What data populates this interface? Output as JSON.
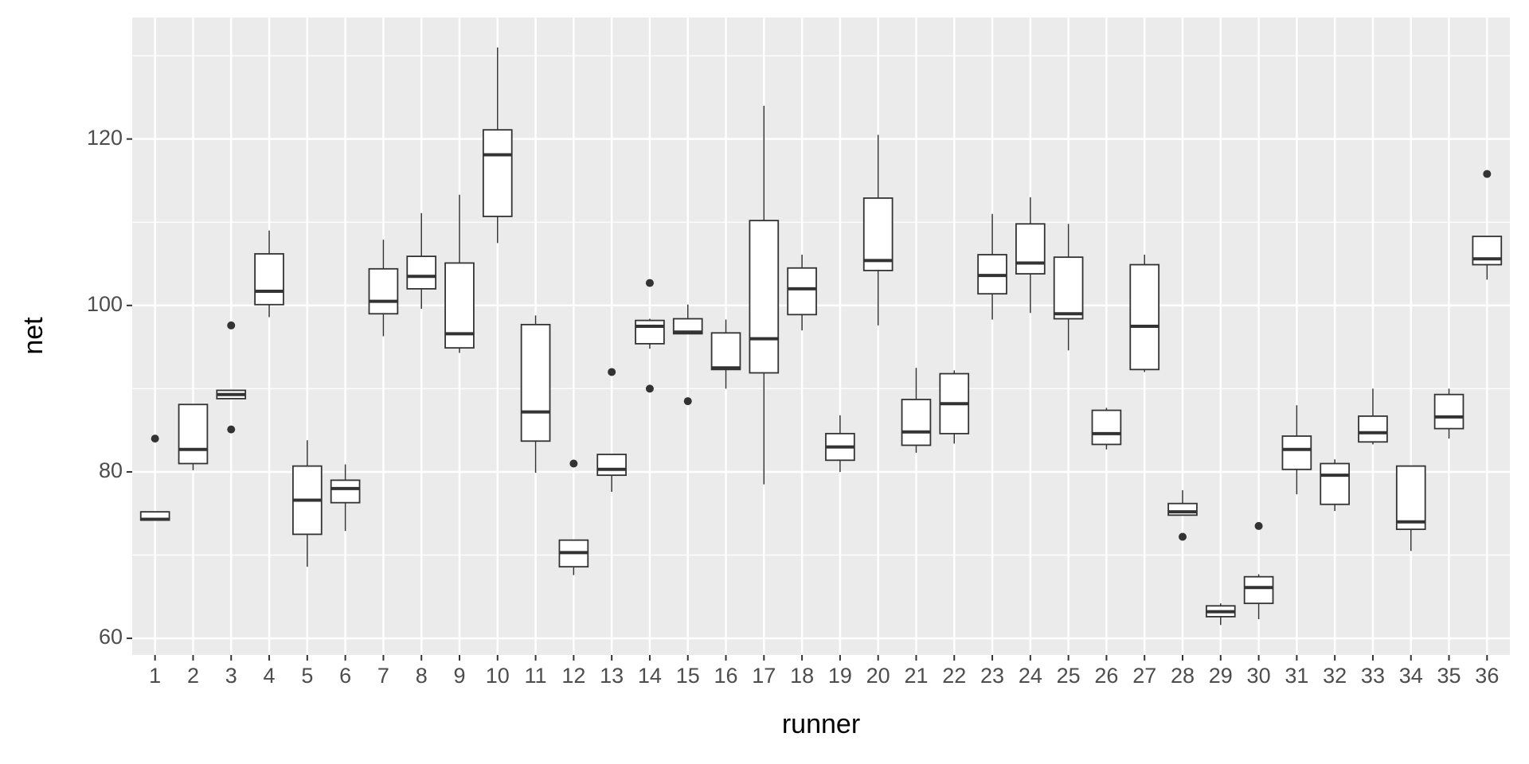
{
  "chart_data": {
    "type": "boxplot",
    "x_label": "runner",
    "y_label": "net",
    "categories": [
      "1",
      "2",
      "3",
      "4",
      "5",
      "6",
      "7",
      "8",
      "9",
      "10",
      "11",
      "12",
      "13",
      "14",
      "15",
      "16",
      "17",
      "18",
      "19",
      "20",
      "21",
      "22",
      "23",
      "24",
      "25",
      "26",
      "27",
      "28",
      "29",
      "30",
      "31",
      "32",
      "33",
      "34",
      "35",
      "36"
    ],
    "whisker_low": [
      74.2,
      80.2,
      88.8,
      98.6,
      68.6,
      72.9,
      96.3,
      99.6,
      94.3,
      107.5,
      79.9,
      67.6,
      77.6,
      94.8,
      96.6,
      90.0,
      78.5,
      97.0,
      80.0,
      97.6,
      82.3,
      83.4,
      98.3,
      99.1,
      94.6,
      82.7,
      92.0,
      74.8,
      61.6,
      62.3,
      77.3,
      75.3,
      83.3,
      70.5,
      84.0,
      103.1
    ],
    "q1": [
      74.2,
      81.0,
      88.8,
      100.1,
      72.5,
      76.3,
      99.0,
      102.0,
      94.9,
      110.7,
      83.7,
      68.6,
      79.6,
      95.4,
      96.6,
      92.3,
      91.9,
      98.9,
      81.4,
      104.2,
      83.2,
      84.6,
      101.4,
      103.8,
      98.4,
      83.3,
      92.3,
      74.8,
      62.6,
      64.2,
      80.3,
      76.1,
      83.6,
      73.1,
      85.2,
      104.9
    ],
    "median": [
      74.3,
      82.7,
      89.3,
      101.7,
      76.6,
      78.0,
      100.5,
      103.5,
      96.6,
      118.1,
      87.2,
      70.3,
      80.3,
      97.5,
      96.8,
      92.5,
      96.0,
      102.0,
      83.0,
      105.4,
      84.8,
      88.2,
      103.6,
      105.1,
      99.0,
      84.6,
      97.5,
      75.2,
      63.2,
      66.1,
      82.7,
      79.6,
      84.7,
      74.0,
      86.6,
      105.6
    ],
    "q3": [
      75.2,
      88.1,
      89.8,
      106.2,
      80.7,
      79.0,
      104.4,
      105.9,
      105.1,
      121.1,
      97.7,
      71.8,
      82.1,
      98.2,
      98.4,
      96.7,
      110.2,
      104.5,
      84.6,
      112.9,
      88.7,
      91.8,
      106.1,
      109.8,
      105.8,
      87.4,
      104.9,
      76.2,
      63.9,
      67.4,
      84.3,
      81.0,
      86.7,
      80.7,
      89.3,
      108.3
    ],
    "whisker_high": [
      75.2,
      88.1,
      89.8,
      109.0,
      83.8,
      80.9,
      107.9,
      111.1,
      113.3,
      131.0,
      98.8,
      71.8,
      82.1,
      98.4,
      100.1,
      98.3,
      124.0,
      106.1,
      86.8,
      120.5,
      92.5,
      92.2,
      111.0,
      113.0,
      109.8,
      87.7,
      106.1,
      77.8,
      64.2,
      67.7,
      88.0,
      81.5,
      90.0,
      80.7,
      90.0,
      108.3
    ],
    "outliers": [
      [
        84.0
      ],
      [],
      [
        97.6,
        85.1
      ],
      [],
      [],
      [],
      [],
      [],
      [],
      [],
      [],
      [
        81.0
      ],
      [
        92.0
      ],
      [
        102.7,
        90.0
      ],
      [
        88.5
      ],
      [],
      [],
      [],
      [],
      [],
      [],
      [],
      [],
      [],
      [],
      [],
      [],
      [
        72.2
      ],
      [],
      [
        73.5
      ],
      [],
      [],
      [],
      [],
      [],
      [
        115.8
      ]
    ],
    "xlim": [
      0.4,
      36.6
    ],
    "ylim": [
      58,
      134.6
    ],
    "yticks": [
      60,
      80,
      100,
      120
    ],
    "grid": true,
    "panel_color": "#ebebeb",
    "box_fill": "#ffffff",
    "box_stroke": "#333333"
  }
}
